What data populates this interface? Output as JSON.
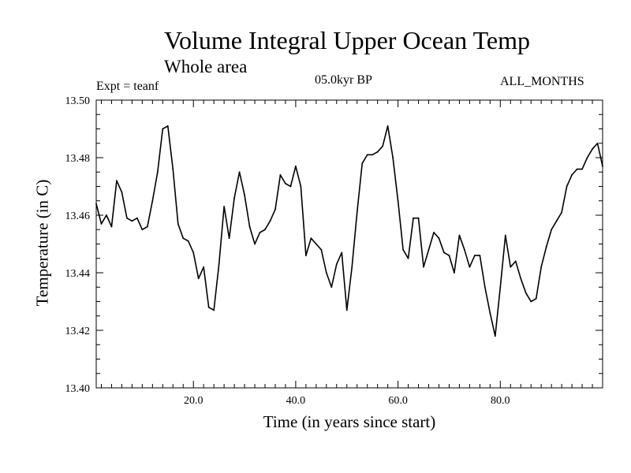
{
  "chart_data": {
    "type": "line",
    "title": "Volume Integral Upper Ocean Temp",
    "subtitle": "Whole area",
    "annotations": {
      "expt": "Expt = teanf",
      "period": "05.0kyr BP",
      "months": "ALL_MONTHS"
    },
    "xlabel": "Time (in years since start)",
    "ylabel": "Temperature (in C)",
    "xlim": [
      1,
      100
    ],
    "ylim": [
      13.4,
      13.5
    ],
    "x_ticks": [
      20,
      40,
      60,
      80
    ],
    "x_tick_labels": [
      "20.0",
      "40.0",
      "60.0",
      "80.0"
    ],
    "y_ticks": [
      13.4,
      13.42,
      13.44,
      13.46,
      13.48,
      13.5
    ],
    "y_tick_labels": [
      "13.40",
      "13.42",
      "13.44",
      "13.46",
      "13.48",
      "13.50"
    ],
    "grid": false,
    "series": [
      {
        "name": "Temperature",
        "x": [
          1,
          2,
          3,
          4,
          5,
          6,
          7,
          8,
          9,
          10,
          11,
          12,
          13,
          14,
          15,
          16,
          17,
          18,
          19,
          20,
          21,
          22,
          23,
          24,
          25,
          26,
          27,
          28,
          29,
          30,
          31,
          32,
          33,
          34,
          35,
          36,
          37,
          38,
          39,
          40,
          41,
          42,
          43,
          44,
          45,
          46,
          47,
          48,
          49,
          50,
          51,
          52,
          53,
          54,
          55,
          56,
          57,
          58,
          59,
          60,
          61,
          62,
          63,
          64,
          65,
          66,
          67,
          68,
          69,
          70,
          71,
          72,
          73,
          74,
          75,
          76,
          77,
          78,
          79,
          80,
          81,
          82,
          83,
          84,
          85,
          86,
          87,
          88,
          89,
          90,
          91,
          92,
          93,
          94,
          95,
          96,
          97,
          98,
          99,
          100
        ],
        "values": [
          13.464,
          13.457,
          13.46,
          13.456,
          13.472,
          13.468,
          13.459,
          13.458,
          13.459,
          13.455,
          13.456,
          13.465,
          13.475,
          13.49,
          13.491,
          13.476,
          13.457,
          13.452,
          13.451,
          13.447,
          13.438,
          13.442,
          13.428,
          13.427,
          13.443,
          13.463,
          13.452,
          13.466,
          13.475,
          13.467,
          13.456,
          13.45,
          13.454,
          13.455,
          13.458,
          13.462,
          13.474,
          13.471,
          13.47,
          13.477,
          13.47,
          13.446,
          13.452,
          13.45,
          13.448,
          13.44,
          13.435,
          13.443,
          13.447,
          13.427,
          13.442,
          13.461,
          13.478,
          13.481,
          13.481,
          13.482,
          13.484,
          13.491,
          13.48,
          13.465,
          13.448,
          13.445,
          13.459,
          13.459,
          13.442,
          13.448,
          13.454,
          13.452,
          13.447,
          13.446,
          13.44,
          13.453,
          13.448,
          13.442,
          13.446,
          13.446,
          13.435,
          13.426,
          13.418,
          13.435,
          13.453,
          13.442,
          13.444,
          13.438,
          13.433,
          13.43,
          13.431,
          13.442,
          13.449,
          13.455,
          13.458,
          13.461,
          13.47,
          13.474,
          13.476,
          13.476,
          13.48,
          13.483,
          13.485,
          13.477
        ]
      }
    ]
  }
}
